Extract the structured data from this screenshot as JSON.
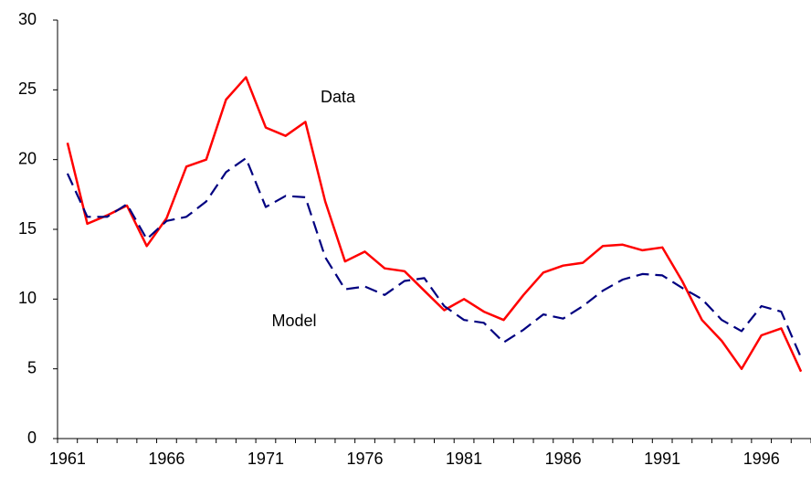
{
  "chart_data": {
    "type": "line",
    "categories": [
      "1961",
      null,
      null,
      null,
      null,
      "1966",
      null,
      null,
      null,
      null,
      "1971",
      null,
      null,
      null,
      null,
      "1976",
      null,
      null,
      null,
      null,
      "1981",
      null,
      null,
      null,
      null,
      "1986",
      null,
      null,
      null,
      null,
      "1991",
      null,
      null,
      null,
      null,
      "1996",
      null,
      null
    ],
    "series": [
      {
        "name": "Data",
        "color": "#ff0000",
        "dash": "solid",
        "values": [
          21.2,
          15.4,
          16.0,
          16.7,
          13.8,
          15.8,
          19.5,
          20.0,
          24.3,
          25.9,
          22.3,
          21.7,
          22.7,
          17.0,
          12.7,
          13.4,
          12.2,
          12.0,
          10.6,
          9.2,
          10.0,
          9.1,
          8.5,
          10.3,
          11.9,
          12.4,
          12.6,
          13.8,
          13.9,
          13.5,
          13.7,
          11.3,
          8.5,
          7.0,
          5.0,
          7.4,
          7.9,
          4.8
        ]
      },
      {
        "name": "Model",
        "color": "#000080",
        "dash": "dashed",
        "values": [
          19.0,
          15.9,
          15.9,
          16.8,
          14.3,
          15.6,
          15.9,
          17.0,
          19.1,
          20.1,
          16.6,
          17.4,
          17.3,
          13.0,
          10.7,
          10.9,
          10.3,
          11.3,
          11.5,
          9.5,
          8.5,
          8.3,
          6.9,
          7.8,
          8.9,
          8.6,
          9.5,
          10.6,
          11.4,
          11.8,
          11.7,
          10.8,
          10.0,
          8.5,
          7.7,
          9.5,
          9.1,
          5.8
        ]
      }
    ],
    "ylim": [
      0,
      30
    ],
    "yticks": [
      0,
      5,
      10,
      15,
      20,
      25,
      30
    ],
    "grid": false
  }
}
